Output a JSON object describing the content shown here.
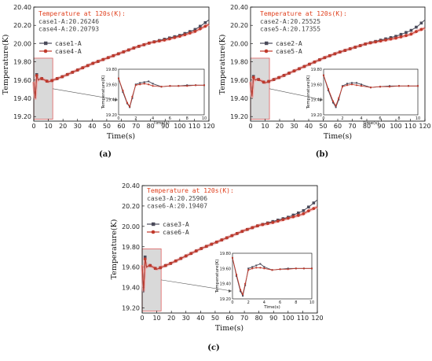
{
  "chart_data": [
    {
      "panel": "(a)",
      "type": "line",
      "xlabel": "Time(s)",
      "ylabel": "Temperature(K)",
      "xlim": [
        0,
        120
      ],
      "ylim": [
        19.15,
        20.4
      ],
      "x_ticks": [
        "0",
        "10",
        "20",
        "30",
        "40",
        "50",
        "60",
        "70",
        "80",
        "90",
        "100",
        "110",
        "120"
      ],
      "y_ticks": [
        "19.20",
        "19.40",
        "19.60",
        "19.80",
        "20.00",
        "20.20",
        "20.40"
      ],
      "annotation": {
        "title": "Temperature at 120s(K):",
        "lines": [
          "case1-A:20.26246",
          "case4-A:20.20793"
        ]
      },
      "series": [
        {
          "name": "case1-A",
          "color": "#4a4a5a",
          "marker": "square",
          "x": [
            0,
            1,
            2,
            3,
            5,
            10,
            15,
            20,
            30,
            40,
            50,
            60,
            70,
            80,
            90,
            100,
            110,
            115,
            120
          ],
          "y": [
            19.58,
            19.4,
            19.66,
            19.6,
            19.62,
            19.58,
            19.61,
            19.64,
            19.71,
            19.78,
            19.84,
            19.9,
            19.96,
            20.01,
            20.05,
            20.09,
            20.15,
            20.2,
            20.26
          ]
        },
        {
          "name": "case4-A",
          "color": "#c0392b",
          "marker": "circle",
          "x": [
            0,
            1,
            2,
            3,
            5,
            10,
            15,
            20,
            30,
            40,
            50,
            60,
            70,
            80,
            90,
            100,
            110,
            115,
            120
          ],
          "y": [
            19.58,
            19.4,
            19.65,
            19.6,
            19.62,
            19.58,
            19.61,
            19.64,
            19.71,
            19.78,
            19.84,
            19.9,
            19.96,
            20.01,
            20.04,
            20.08,
            20.13,
            20.17,
            20.21
          ]
        }
      ],
      "inset": {
        "xlim": [
          0,
          10
        ],
        "ylim": [
          19.2,
          19.8
        ],
        "x_ticks": [
          "0",
          "2",
          "4",
          "6",
          "8",
          "10"
        ],
        "y_ticks": [
          "19.20",
          "19.40",
          "19.60",
          "19.80"
        ],
        "xlabel": "Time(s)",
        "ylabel": "Temperature(K)",
        "series": [
          {
            "x": [
              0,
              0.5,
              1,
              1.3,
              1.6,
              2,
              2.5,
              3,
              3.5,
              4,
              5,
              6,
              7,
              8,
              9,
              10
            ],
            "y": [
              19.68,
              19.5,
              19.35,
              19.3,
              19.42,
              19.6,
              19.62,
              19.63,
              19.64,
              19.61,
              19.57,
              19.58,
              19.58,
              19.59,
              19.59,
              19.59
            ]
          },
          {
            "x": [
              0,
              0.5,
              1,
              1.3,
              1.6,
              2,
              2.5,
              3,
              3.5,
              4,
              5,
              6,
              7,
              8,
              9,
              10
            ],
            "y": [
              19.68,
              19.52,
              19.36,
              19.31,
              19.44,
              19.59,
              19.6,
              19.61,
              19.6,
              19.58,
              19.57,
              19.58,
              19.58,
              19.58,
              19.59,
              19.59
            ]
          }
        ]
      }
    },
    {
      "panel": "(b)",
      "type": "line",
      "xlabel": "Time(s)",
      "ylabel": "Temperature(K)",
      "xlim": [
        0,
        120
      ],
      "ylim": [
        19.15,
        20.4
      ],
      "x_ticks": [
        "0",
        "10",
        "20",
        "30",
        "40",
        "50",
        "60",
        "70",
        "80",
        "90",
        "100",
        "110",
        "120"
      ],
      "y_ticks": [
        "19.20",
        "19.40",
        "19.60",
        "19.80",
        "20.00",
        "20.20",
        "20.40"
      ],
      "annotation": {
        "title": "Temperature at 120s(K):",
        "lines": [
          "case2-A:20.25525",
          "case5-A:20.17355"
        ]
      },
      "series": [
        {
          "name": "case2-A",
          "color": "#4a4a5a",
          "marker": "square",
          "x": [
            0,
            1,
            2,
            3,
            5,
            10,
            15,
            20,
            30,
            40,
            50,
            60,
            70,
            80,
            90,
            100,
            110,
            115,
            120
          ],
          "y": [
            19.58,
            19.42,
            19.64,
            19.6,
            19.61,
            19.57,
            19.6,
            19.63,
            19.7,
            19.77,
            19.84,
            19.9,
            19.95,
            20.0,
            20.04,
            20.08,
            20.14,
            20.19,
            20.26
          ]
        },
        {
          "name": "case5-A",
          "color": "#c0392b",
          "marker": "circle",
          "x": [
            0,
            1,
            2,
            3,
            5,
            10,
            15,
            20,
            30,
            40,
            50,
            60,
            70,
            80,
            90,
            100,
            110,
            115,
            120
          ],
          "y": [
            19.58,
            19.42,
            19.63,
            19.6,
            19.61,
            19.57,
            19.6,
            19.63,
            19.7,
            19.77,
            19.84,
            19.9,
            19.95,
            20.0,
            20.03,
            20.06,
            20.1,
            20.14,
            20.17
          ]
        }
      ],
      "inset": {
        "xlim": [
          0,
          10
        ],
        "ylim": [
          19.2,
          19.8
        ],
        "x_ticks": [
          "0",
          "2",
          "4",
          "6",
          "8",
          "10"
        ],
        "y_ticks": [
          "19.20",
          "19.40",
          "19.60",
          "19.80"
        ],
        "xlabel": "Time(s)",
        "ylabel": "Temperature(K)",
        "series": [
          {
            "x": [
              0,
              0.5,
              1,
              1.3,
              1.6,
              2,
              2.5,
              3,
              3.5,
              4,
              5,
              6,
              7,
              8,
              9,
              10
            ],
            "y": [
              19.72,
              19.52,
              19.36,
              19.3,
              19.4,
              19.58,
              19.61,
              19.62,
              19.62,
              19.6,
              19.56,
              19.57,
              19.58,
              19.58,
              19.58,
              19.58
            ]
          },
          {
            "x": [
              0,
              0.5,
              1,
              1.3,
              1.6,
              2,
              2.5,
              3,
              3.5,
              4,
              5,
              6,
              7,
              8,
              9,
              10
            ],
            "y": [
              19.72,
              19.54,
              19.38,
              19.32,
              19.42,
              19.57,
              19.59,
              19.6,
              19.59,
              19.58,
              19.56,
              19.57,
              19.57,
              19.58,
              19.58,
              19.58
            ]
          }
        ]
      }
    },
    {
      "panel": "(c)",
      "type": "line",
      "xlabel": "Time(s)",
      "ylabel": "Temperature(K)",
      "xlim": [
        0,
        120
      ],
      "ylim": [
        19.15,
        20.4
      ],
      "x_ticks": [
        "0",
        "10",
        "20",
        "30",
        "40",
        "50",
        "60",
        "70",
        "80",
        "90",
        "100",
        "110",
        "120"
      ],
      "y_ticks": [
        "19.20",
        "19.40",
        "19.60",
        "19.80",
        "20.00",
        "20.20",
        "20.40"
      ],
      "annotation": {
        "title": "Temperature at 120s(K):",
        "lines": [
          "case3-A:20.25906",
          "case6-A:20.19407"
        ]
      },
      "series": [
        {
          "name": "case3-A",
          "color": "#4a4a5a",
          "marker": "square",
          "x": [
            0,
            1,
            2,
            3,
            5,
            10,
            15,
            20,
            30,
            40,
            50,
            60,
            70,
            80,
            90,
            100,
            110,
            115,
            120
          ],
          "y": [
            19.62,
            19.35,
            19.7,
            19.6,
            19.62,
            19.58,
            19.61,
            19.64,
            19.71,
            19.78,
            19.84,
            19.9,
            19.96,
            20.01,
            20.05,
            20.09,
            20.15,
            20.2,
            20.26
          ]
        },
        {
          "name": "case6-A",
          "color": "#c0392b",
          "marker": "circle",
          "x": [
            0,
            1,
            2,
            3,
            5,
            10,
            15,
            20,
            30,
            40,
            50,
            60,
            70,
            80,
            90,
            100,
            110,
            115,
            120
          ],
          "y": [
            19.62,
            19.37,
            19.68,
            19.6,
            19.62,
            19.58,
            19.61,
            19.64,
            19.71,
            19.78,
            19.84,
            19.9,
            19.96,
            20.01,
            20.04,
            20.08,
            20.12,
            20.16,
            20.19
          ]
        }
      ],
      "inset": {
        "xlim": [
          0,
          10
        ],
        "ylim": [
          19.2,
          19.8
        ],
        "x_ticks": [
          "0",
          "2",
          "4",
          "6",
          "8",
          "10"
        ],
        "y_ticks": [
          "19.20",
          "19.40",
          "19.60",
          "19.80"
        ],
        "xlabel": "Time(s)",
        "ylabel": "Temperature(K)",
        "series": [
          {
            "x": [
              0,
              0.5,
              1,
              1.3,
              1.6,
              2,
              2.5,
              3,
              3.5,
              4,
              5,
              6,
              7,
              8,
              9,
              10
            ],
            "y": [
              19.74,
              19.5,
              19.3,
              19.24,
              19.38,
              19.6,
              19.62,
              19.64,
              19.66,
              19.62,
              19.58,
              19.59,
              19.6,
              19.6,
              19.6,
              19.6
            ]
          },
          {
            "x": [
              0,
              0.5,
              1,
              1.3,
              1.6,
              2,
              2.5,
              3,
              3.5,
              4,
              5,
              6,
              7,
              8,
              9,
              10
            ],
            "y": [
              19.74,
              19.52,
              19.32,
              19.26,
              19.4,
              19.58,
              19.6,
              19.61,
              19.61,
              19.6,
              19.58,
              19.59,
              19.59,
              19.6,
              19.6,
              19.6
            ]
          }
        ]
      }
    }
  ]
}
